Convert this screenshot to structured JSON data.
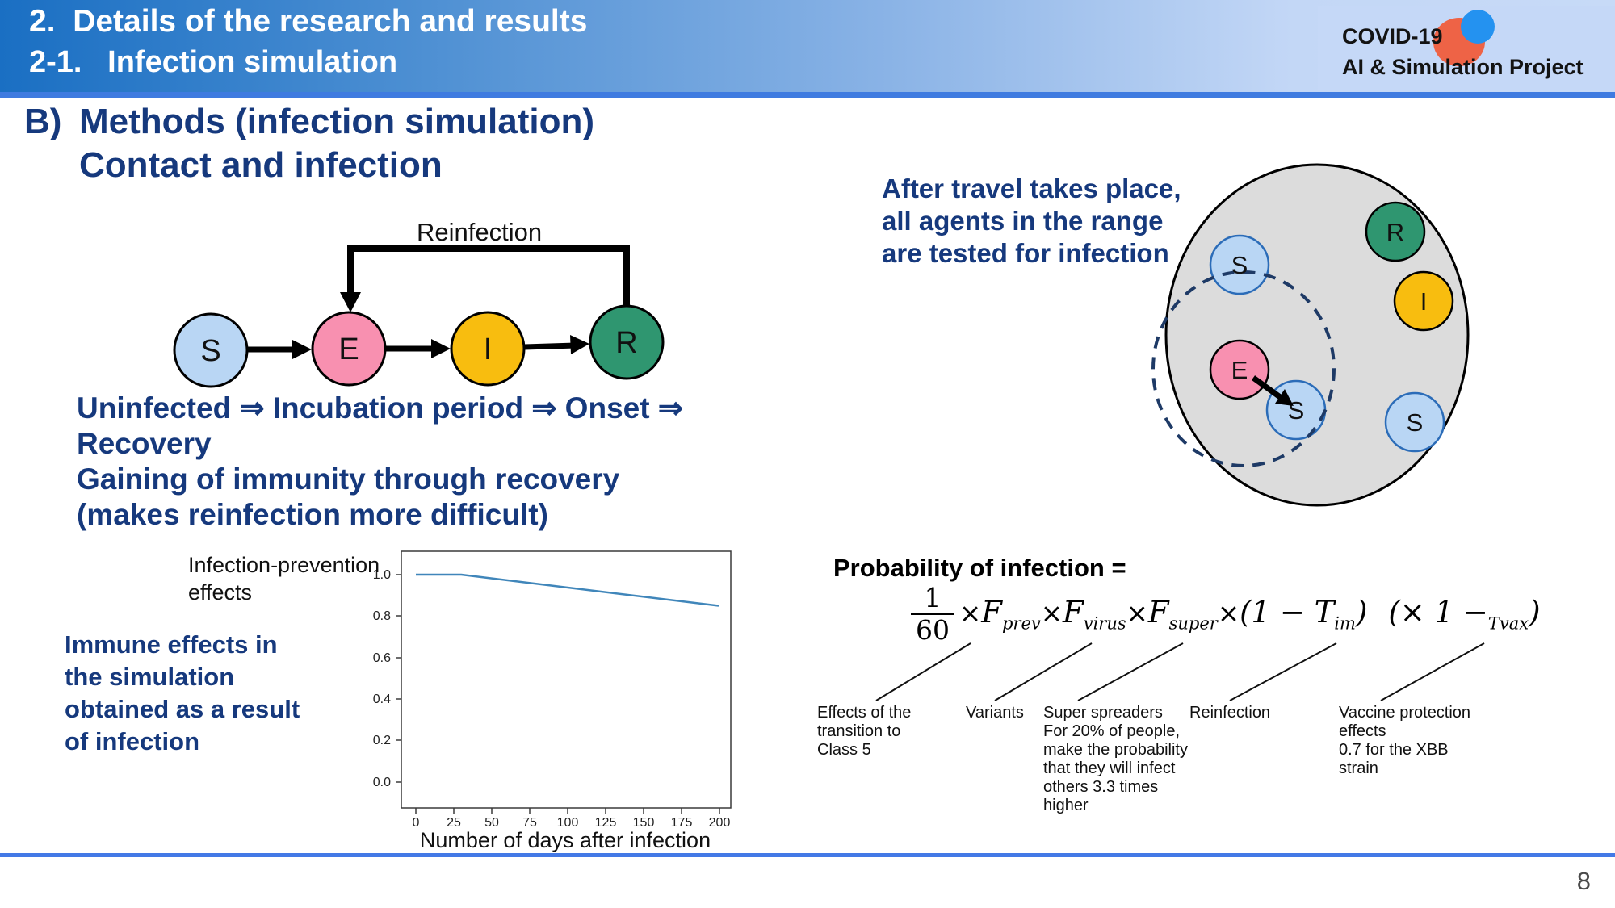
{
  "header": {
    "title_line1": "2.  Details of the research and results",
    "title_line2": "2-1.   Infection simulation"
  },
  "logo": {
    "line1": "COVID-19",
    "line2": "AI & Simulation Project"
  },
  "headings": {
    "section_label": "B)",
    "section_title": "Methods (infection simulation)",
    "subsection_title": "Contact and infection"
  },
  "seir": {
    "reinfection_label": "Reinfection",
    "nodes": [
      "S",
      "E",
      "I",
      "R"
    ],
    "flow_text": "Uninfected ⇒ Incubation period ⇒ Onset ⇒\nRecovery\nGaining of immunity through recovery\n(makes reinfection more difficult)"
  },
  "immune_note": "Immune effects in\nthe simulation\nobtained as a result\nof infection",
  "travel_note": "After travel takes place,\nall agents in the range\nare tested for infection",
  "range_diagram": {
    "agents": [
      "S",
      "R",
      "I",
      "E",
      "S",
      "S"
    ]
  },
  "chart": {
    "ylabel": "Infection-prevention\neffects",
    "xlabel": "Number of days after infection"
  },
  "chart_data": {
    "type": "line",
    "title": "",
    "x": [
      0,
      30,
      75,
      200
    ],
    "y": [
      1.0,
      1.0,
      0.96,
      0.85
    ],
    "xlabel": "Number of days after infection",
    "ylabel": "Infection-prevention effects",
    "xlim": [
      0,
      210
    ],
    "ylim": [
      0.0,
      1.08
    ],
    "xtick_labels": [
      "0",
      "25",
      "50",
      "75",
      "100",
      "125",
      "150",
      "175",
      "200"
    ],
    "ytick_labels_top_down": [
      "1.0",
      "0.8",
      "0.6",
      "0.4",
      "0.2",
      "0.0"
    ],
    "grid": false,
    "legend": "none",
    "line_color": "#4086ba"
  },
  "formula": {
    "title": "Probability of infection =",
    "frac_num": "1",
    "frac_den": "60",
    "x1": "×",
    "f1": "F",
    "s1": "prev",
    "x2": "×",
    "f2": "F",
    "s2": "virus",
    "x3": "×",
    "f3": "F",
    "s3": "super",
    "x4": "×",
    "p4": "(1 − T",
    "s4": "im",
    "c4": ")",
    "p5": "(× 1 −",
    "s5": "Tvax",
    "c5": ")",
    "notes": [
      "Effects of the\ntransition to\nClass 5",
      "Variants",
      "Super spreaders\nFor 20% of people,\nmake the probability\nthat they will infect\nothers 3.3 times\nhigher",
      "Reinfection",
      "Vaccine protection\neffects\n0.7 for the XBB\nstrain"
    ]
  },
  "footer": {
    "page_number": "8"
  },
  "colors": {
    "navy_text": "#16397d",
    "header_blue": "#1a6fc3",
    "header_light": "#c7daf7",
    "accent_rule": "#3f7be0",
    "node_s": "#b9d6f4",
    "node_e": "#f890b0",
    "node_i": "#f8bd0f",
    "node_r": "#2f9670",
    "range_fill": "#dcdcdc",
    "dashed_range": "#1e3a66",
    "chart_line": "#4086ba",
    "logo_orange": "#ee6346",
    "logo_blue": "#2492f0"
  }
}
